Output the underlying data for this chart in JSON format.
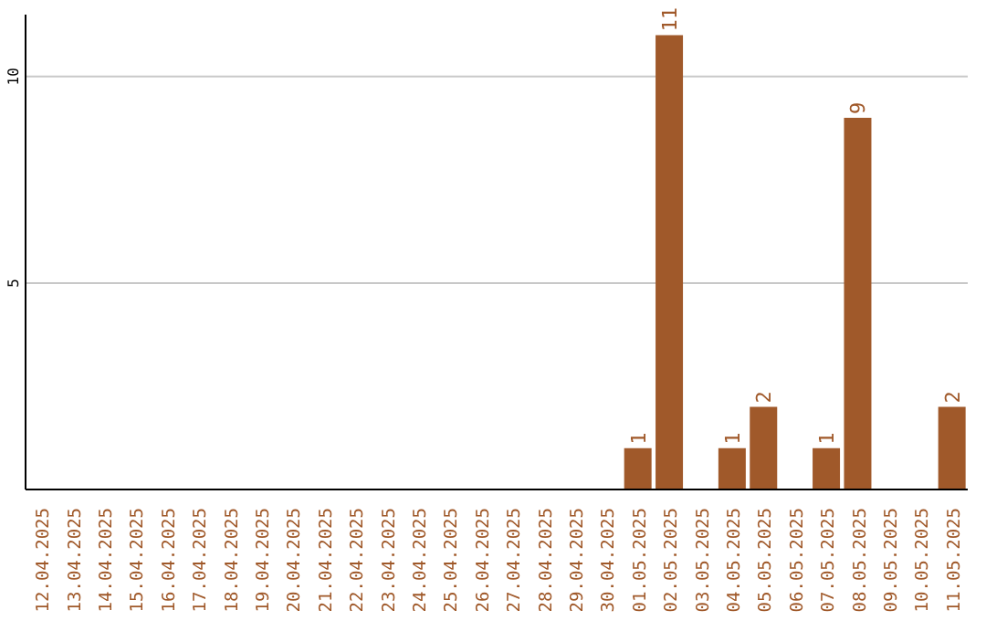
{
  "chart_data": {
    "type": "bar",
    "categories": [
      "12.04.2025",
      "13.04.2025",
      "14.04.2025",
      "15.04.2025",
      "16.04.2025",
      "17.04.2025",
      "18.04.2025",
      "19.04.2025",
      "20.04.2025",
      "21.04.2025",
      "22.04.2025",
      "23.04.2025",
      "24.04.2025",
      "25.04.2025",
      "26.04.2025",
      "27.04.2025",
      "28.04.2025",
      "29.04.2025",
      "30.04.2025",
      "01.05.2025",
      "02.05.2025",
      "03.05.2025",
      "04.05.2025",
      "05.05.2025",
      "06.05.2025",
      "07.05.2025",
      "08.05.2025",
      "09.05.2025",
      "10.05.2025",
      "11.05.2025"
    ],
    "values": [
      0,
      0,
      0,
      0,
      0,
      0,
      0,
      0,
      0,
      0,
      0,
      0,
      0,
      0,
      0,
      0,
      0,
      0,
      0,
      1,
      11,
      0,
      1,
      2,
      0,
      1,
      9,
      0,
      0,
      2
    ],
    "value_labels": [
      null,
      null,
      null,
      null,
      null,
      null,
      null,
      null,
      null,
      null,
      null,
      null,
      null,
      null,
      null,
      null,
      null,
      null,
      null,
      "1",
      "11",
      null,
      "1",
      "2",
      null,
      "1",
      "9",
      null,
      null,
      "2"
    ],
    "color": "#a0592a",
    "ylim": [
      0,
      11.5
    ],
    "yticks": [
      5,
      10
    ],
    "grid": "y",
    "legend": false
  }
}
